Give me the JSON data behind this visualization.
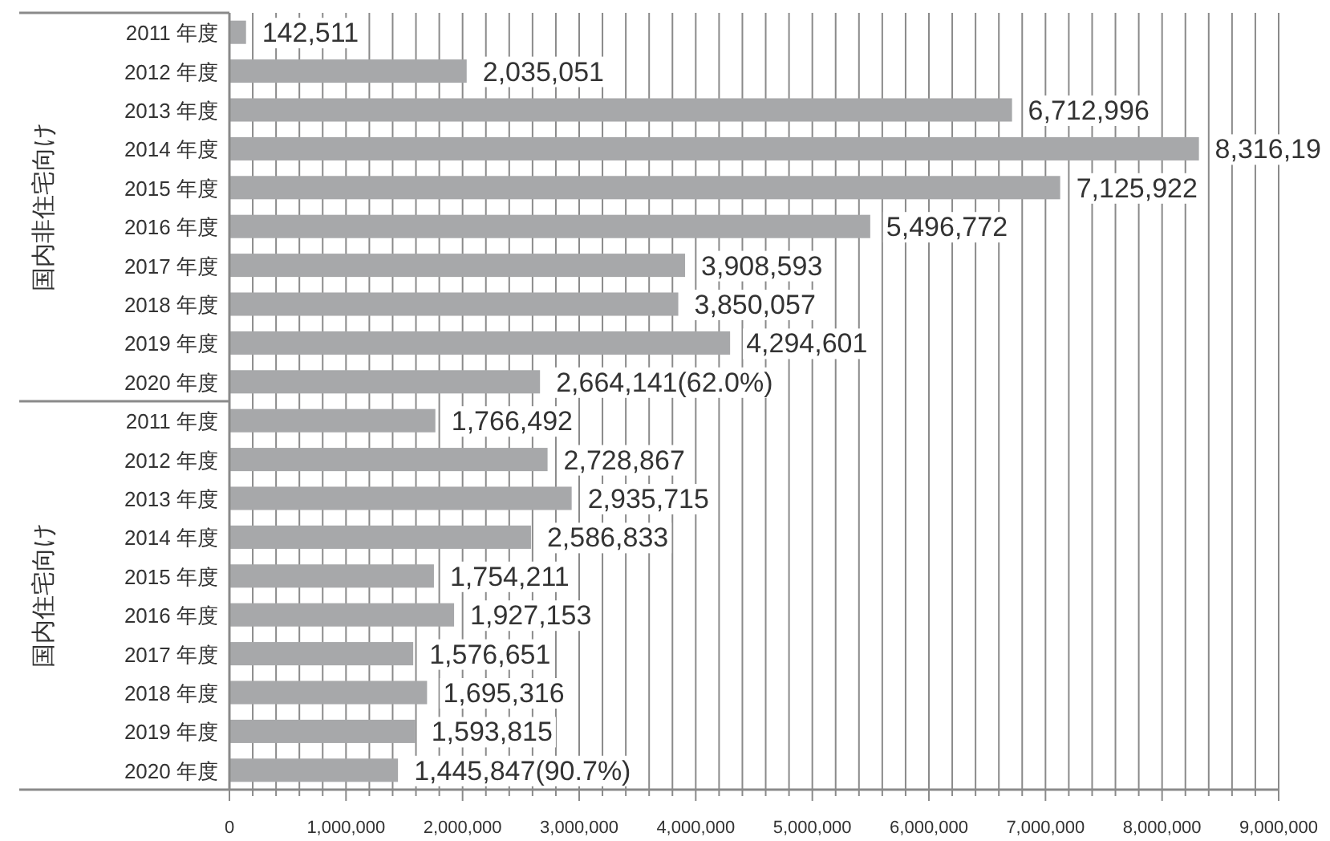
{
  "chart_data": {
    "type": "bar",
    "orientation": "horizontal",
    "categories": [
      "2011 年度",
      "2012 年度",
      "2013 年度",
      "2014 年度",
      "2015 年度",
      "2016 年度",
      "2017 年度",
      "2018 年度",
      "2019 年度",
      "2020 年度",
      "2011 年度",
      "2012 年度",
      "2013 年度",
      "2014 年度",
      "2015 年度",
      "2016 年度",
      "2017 年度",
      "2018 年度",
      "2019 年度",
      "2020 年度"
    ],
    "values": [
      142511,
      2035051,
      6712996,
      8316190,
      7125922,
      5496772,
      3908593,
      3850057,
      4294601,
      2664141,
      1766492,
      2728867,
      2935715,
      2586833,
      1754211,
      1927153,
      1576651,
      1695316,
      1593815,
      1445847
    ],
    "value_labels": [
      "142,511",
      "2,035,051",
      "6,712,996",
      "8,316,19",
      "7,125,922",
      "5,496,772",
      "3,908,593",
      "3,850,057",
      "4,294,601",
      "2,664,141(62.0%)",
      "1,766,492",
      "2,728,867",
      "2,935,715",
      "2,586,833",
      "1,754,211",
      "1,927,153",
      "1,576,651",
      "1,695,316",
      "1,593,815",
      "1,445,847(90.7%)"
    ],
    "color": "#a7a8aa",
    "annotations": [
      "国内非住宅向け",
      "国内住宅向け"
    ],
    "xlim": [
      0,
      9000000
    ],
    "xticks": [
      {
        "value": 0,
        "label": "0"
      },
      {
        "value": 200000,
        "label": null
      },
      {
        "value": 400000,
        "label": null
      },
      {
        "value": 600000,
        "label": null
      },
      {
        "value": 800000,
        "label": null
      },
      {
        "value": 1000000,
        "label": "1,000,000"
      },
      {
        "value": 1200000,
        "label": null
      },
      {
        "value": 1400000,
        "label": null
      },
      {
        "value": 1600000,
        "label": null
      },
      {
        "value": 1800000,
        "label": null
      },
      {
        "value": 2000000,
        "label": "2,000,000"
      },
      {
        "value": 2200000,
        "label": null
      },
      {
        "value": 2400000,
        "label": null
      },
      {
        "value": 2600000,
        "label": null
      },
      {
        "value": 2800000,
        "label": null
      },
      {
        "value": 3000000,
        "label": "3,000,000"
      },
      {
        "value": 3200000,
        "label": null
      },
      {
        "value": 3400000,
        "label": null
      },
      {
        "value": 3600000,
        "label": null
      },
      {
        "value": 3800000,
        "label": null
      },
      {
        "value": 4000000,
        "label": "4,000,000"
      },
      {
        "value": 4200000,
        "label": null
      },
      {
        "value": 4400000,
        "label": null
      },
      {
        "value": 4600000,
        "label": null
      },
      {
        "value": 4800000,
        "label": null
      },
      {
        "value": 5000000,
        "label": "5,000,000"
      },
      {
        "value": 5200000,
        "label": null
      },
      {
        "value": 5400000,
        "label": null
      },
      {
        "value": 5600000,
        "label": null
      },
      {
        "value": 5800000,
        "label": null
      },
      {
        "value": 6000000,
        "label": "6,000,000"
      },
      {
        "value": 6200000,
        "label": null
      },
      {
        "value": 6400000,
        "label": null
      },
      {
        "value": 6600000,
        "label": null
      },
      {
        "value": 6800000,
        "label": null
      },
      {
        "value": 7000000,
        "label": "7,000,000"
      },
      {
        "value": 7200000,
        "label": null
      },
      {
        "value": 7400000,
        "label": null
      },
      {
        "value": 7600000,
        "label": null
      },
      {
        "value": 7800000,
        "label": null
      },
      {
        "value": 8000000,
        "label": "8,000,000"
      },
      {
        "value": 8200000,
        "label": null
      },
      {
        "value": 8400000,
        "label": null
      },
      {
        "value": 8600000,
        "label": null
      },
      {
        "value": 8800000,
        "label": null
      },
      {
        "value": 9000000,
        "label": "9,000,000"
      }
    ],
    "grid": "x"
  }
}
